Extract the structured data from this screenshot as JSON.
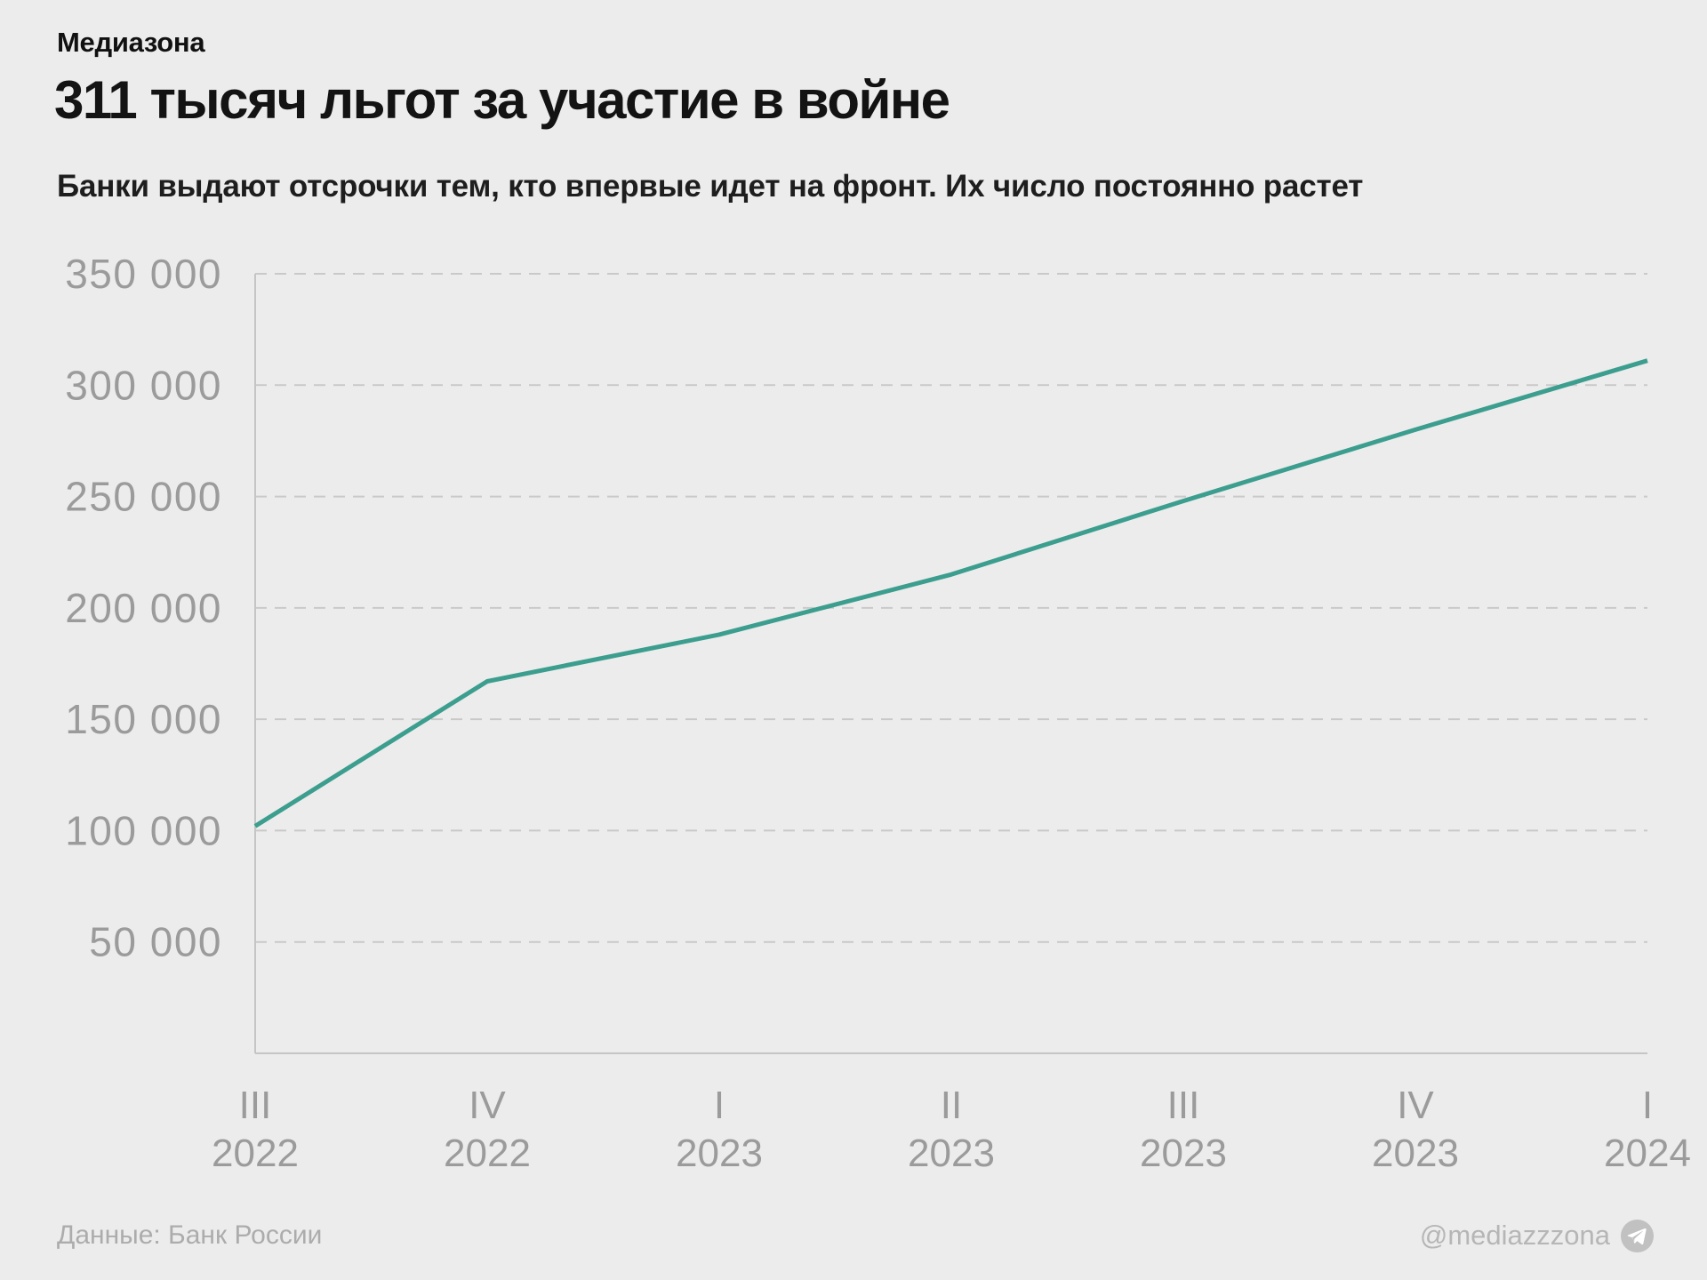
{
  "brand": "Медиазона",
  "title": "311 тысяч льгот за участие в войне",
  "subtitle": "Банки выдают отсрочки тем, кто впервые идет на фронт. Их число постоянно растет",
  "footer": {
    "source": "Данные: Банк России",
    "handle": "@mediazzzona",
    "icon": "telegram-icon"
  },
  "colors": {
    "background": "#ececec",
    "line": "#3c9e8e",
    "grid": "#c9c9c9",
    "axis": "#c5c5c5",
    "axis_text": "#9b9b9b",
    "title_text": "#131313",
    "muted_text": "#acacac"
  },
  "chart_data": {
    "type": "line",
    "title": "311 тысяч льгот за участие в войне",
    "subtitle": "Банки выдают отсрочки тем, кто впервые идет на фронт. Их число постоянно растет",
    "categories": [
      {
        "quarter": "III",
        "year": "2022"
      },
      {
        "quarter": "IV",
        "year": "2022"
      },
      {
        "quarter": "I",
        "year": "2023"
      },
      {
        "quarter": "II",
        "year": "2023"
      },
      {
        "quarter": "III",
        "year": "2023"
      },
      {
        "quarter": "IV",
        "year": "2023"
      },
      {
        "quarter": "I",
        "year": "2024"
      }
    ],
    "values": [
      102000,
      167000,
      188000,
      215000,
      248000,
      280000,
      311000
    ],
    "xlabel": "",
    "ylabel": "",
    "ylim": [
      0,
      350000
    ],
    "yticks": [
      50000,
      100000,
      150000,
      200000,
      250000,
      300000,
      350000
    ],
    "ytick_labels": [
      "50 000",
      "100 000",
      "150 000",
      "200 000",
      "250 000",
      "300 000",
      "350 000"
    ],
    "grid": "horizontal-dashed",
    "legend": "none",
    "line_color": "#3c9e8e",
    "source": "Данные: Банк России",
    "watermark": "@mediazzzona"
  }
}
